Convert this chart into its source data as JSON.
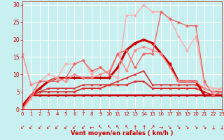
{
  "xlabel": "Vent moyen/en rafales ( km/h )",
  "xlim": [
    0,
    23
  ],
  "ylim": [
    0,
    31
  ],
  "yticks": [
    0,
    5,
    10,
    15,
    20,
    25,
    30
  ],
  "xticks": [
    0,
    1,
    2,
    3,
    4,
    5,
    6,
    7,
    8,
    9,
    10,
    11,
    12,
    13,
    14,
    15,
    16,
    17,
    18,
    19,
    20,
    21,
    22,
    23
  ],
  "bg_color": "#c8f0f0",
  "grid_color": "#ffffff",
  "lines": [
    {
      "x": [
        0,
        1,
        2,
        3,
        4,
        5,
        6,
        7,
        8,
        9,
        10,
        11,
        12,
        13,
        14,
        15,
        16,
        17,
        18,
        19,
        20,
        21,
        22,
        23
      ],
      "y": [
        0,
        4,
        4,
        4,
        4,
        4,
        4,
        4,
        4,
        4,
        4,
        4,
        4,
        4,
        4,
        4,
        4,
        4,
        4,
        4,
        4,
        4,
        4,
        4
      ],
      "color": "#cc0000",
      "lw": 1.8,
      "marker": "^",
      "ms": 2.5
    },
    {
      "x": [
        0,
        1,
        2,
        3,
        4,
        5,
        6,
        7,
        8,
        9,
        10,
        11,
        12,
        13,
        14,
        15,
        16,
        17,
        18,
        19,
        20,
        21,
        22,
        23
      ],
      "y": [
        0,
        4,
        5,
        5,
        5,
        5,
        5,
        6,
        6,
        6,
        7,
        7,
        7,
        8,
        8,
        6,
        6,
        6,
        6,
        6,
        6,
        5,
        4,
        4
      ],
      "color": "#dd2222",
      "lw": 1.2,
      "marker": "^",
      "ms": 2.5
    },
    {
      "x": [
        0,
        1,
        2,
        3,
        4,
        5,
        6,
        7,
        8,
        9,
        10,
        11,
        12,
        13,
        14,
        15,
        16,
        17,
        18,
        19,
        20,
        21,
        22,
        23
      ],
      "y": [
        0,
        4,
        5,
        6,
        6,
        6,
        6,
        7,
        7,
        7,
        7,
        8,
        9,
        10,
        11,
        7,
        7,
        7,
        7,
        7,
        7,
        6,
        5,
        5
      ],
      "color": "#dd3333",
      "lw": 1.2,
      "marker": "^",
      "ms": 2.5
    },
    {
      "x": [
        0,
        1,
        2,
        3,
        4,
        5,
        6,
        7,
        8,
        9,
        10,
        11,
        12,
        13,
        14,
        15,
        16,
        17,
        18,
        19,
        20,
        21,
        22,
        23
      ],
      "y": [
        1,
        4,
        6,
        8,
        9,
        9,
        9,
        9,
        9,
        9,
        9,
        12,
        17,
        19,
        20,
        19,
        16,
        13,
        8,
        8,
        8,
        4,
        4,
        4
      ],
      "color": "#cc0000",
      "lw": 2.2,
      "marker": "D",
      "ms": 2.5
    },
    {
      "x": [
        0,
        1,
        2,
        3,
        4,
        5,
        6,
        7,
        8,
        9,
        10,
        11,
        12,
        13,
        14,
        15,
        16,
        17,
        18,
        19,
        20,
        21,
        22,
        23
      ],
      "y": [
        16,
        7,
        8,
        8,
        9,
        8,
        10,
        9,
        9,
        10,
        11,
        16,
        11,
        17,
        18,
        17,
        16,
        12,
        8,
        8,
        8,
        6,
        5,
        6
      ],
      "color": "#ff8888",
      "lw": 1.0,
      "marker": "D",
      "ms": 2.5
    },
    {
      "x": [
        0,
        1,
        2,
        3,
        4,
        5,
        6,
        7,
        8,
        9,
        10,
        11,
        12,
        13,
        14,
        15,
        16,
        17,
        18,
        19,
        20,
        21,
        22,
        23
      ],
      "y": [
        0,
        3,
        8,
        10,
        9,
        13,
        13,
        14,
        10,
        12,
        10,
        9,
        27,
        27,
        30,
        28,
        28,
        26,
        21,
        17,
        21,
        7,
        6,
        6
      ],
      "color": "#ffaaaa",
      "lw": 1.0,
      "marker": "D",
      "ms": 2.5
    },
    {
      "x": [
        0,
        1,
        2,
        3,
        4,
        5,
        6,
        7,
        8,
        9,
        10,
        11,
        12,
        13,
        14,
        15,
        16,
        17,
        18,
        19,
        20,
        21,
        22,
        23
      ],
      "y": [
        0,
        4,
        8,
        8,
        8,
        9,
        13,
        14,
        11,
        12,
        10,
        16,
        17,
        12,
        16,
        16,
        28,
        26,
        25,
        24,
        24,
        8,
        4,
        5
      ],
      "color": "#ee6666",
      "lw": 1.0,
      "marker": "D",
      "ms": 2.5
    }
  ],
  "arrows": [
    "↙",
    "↙",
    "↙",
    "↙",
    "↙",
    "↙",
    "↙",
    "↙",
    "←",
    "↖",
    "↖",
    "↖",
    "↖",
    "↑",
    "↑",
    "↗",
    "→",
    "↘",
    "↘",
    "↘",
    "↘",
    "↘",
    "↓",
    "↓"
  ],
  "arrow_color": "#cc0000"
}
